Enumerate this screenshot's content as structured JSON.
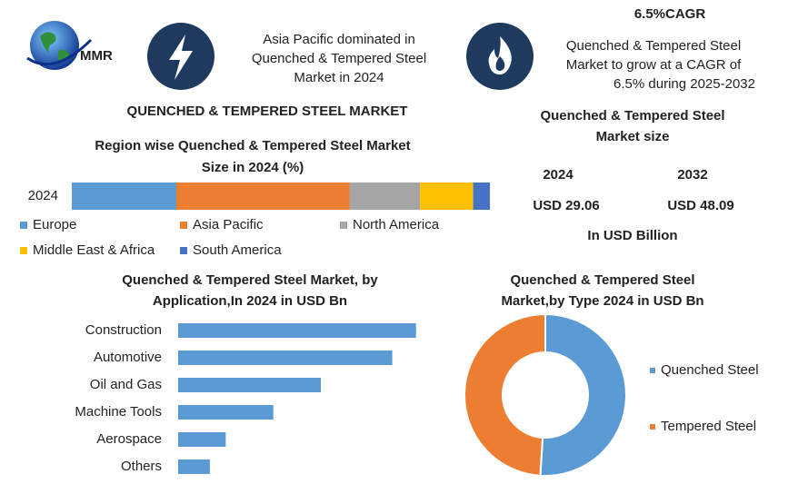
{
  "header": {
    "logo_text": "MMR",
    "headline": [
      "Asia Pacific dominated in",
      "Quenched & Tempered Steel",
      "Market in 2024"
    ],
    "cagr_title": "6.5%CAGR",
    "cagr_text": [
      "Quenched & Tempered Steel",
      "Market to grow at a CAGR of",
      "6.5% during 2025-2032"
    ],
    "title": "QUENCHED & TEMPERED STEEL MARKET"
  },
  "market_size": {
    "title": [
      "Quenched & Tempered Steel",
      "Market size"
    ],
    "years": [
      "2024",
      "2032"
    ],
    "values": [
      "USD 29.06",
      "USD 48.09"
    ],
    "unit": "In USD Billion"
  },
  "chart_data": [
    {
      "type": "stacked_bar",
      "title": [
        "Region wise Quenched & Tempered Steel Market",
        "Size in 2024 (%)"
      ],
      "categories": [
        "2024"
      ],
      "xlim": [
        0,
        100
      ],
      "series": [
        {
          "name": "Europe",
          "color": "#5b9bd5",
          "values": [
            25
          ]
        },
        {
          "name": "Asia Pacific",
          "color": "#ed7d31",
          "values": [
            41.5
          ]
        },
        {
          "name": "North America",
          "color": "#a5a5a5",
          "values": [
            16.8
          ]
        },
        {
          "name": "Middle East & Africa",
          "color": "#ffc000",
          "values": [
            12.7
          ]
        },
        {
          "name": "South America",
          "color": "#4472c4",
          "values": [
            4
          ]
        }
      ]
    },
    {
      "type": "bar",
      "title": [
        "Quenched & Tempered Steel Market, by",
        "Application,In 2024 in USD Bn"
      ],
      "categories": [
        "Construction",
        "Automotive",
        "Oil and Gas",
        "Machine Tools",
        "Aerospace",
        "Others"
      ],
      "values": [
        9.0,
        8.1,
        5.4,
        3.6,
        1.8,
        1.2
      ],
      "color": "#5b9bd5",
      "xlim": [
        0,
        12
      ]
    },
    {
      "type": "pie",
      "title": [
        "Quenched & Tempered Steel",
        "Market,by Type 2024 in USD Bn"
      ],
      "categories": [
        "Quenched Steel",
        "Tempered Steel"
      ],
      "values": [
        51,
        49
      ],
      "colors": [
        "#5b9bd5",
        "#ed7d31"
      ]
    }
  ]
}
